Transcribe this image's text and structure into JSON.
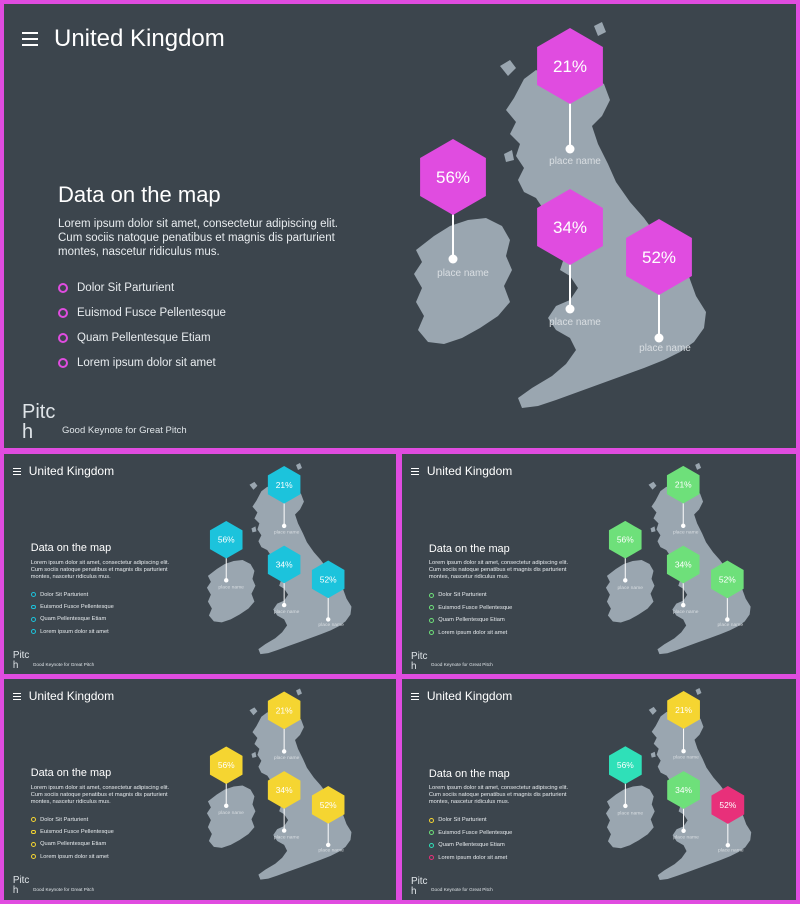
{
  "header": {
    "title": "United Kingdom"
  },
  "content": {
    "heading": "Data on the map",
    "description": [
      "Lorem ipsum dolor sit amet, consectetur adipiscing elit.",
      "Cum sociis natoque penatibus et magnis dis parturient",
      "montes, nascetur ridiculus mus."
    ],
    "bullets": [
      "Dolor Sit Parturient",
      "Euismod Fusce Pellentesque",
      "Quam Pellentesque Etiam",
      "Lorem ipsum dolor sit amet"
    ]
  },
  "footer": {
    "logo_line1": "Pitc",
    "logo_line2": "h",
    "tagline": "Good Keynote for Great Pitch"
  },
  "pins": [
    {
      "value": "21%",
      "label": "place name"
    },
    {
      "value": "56%",
      "label": "place name"
    },
    {
      "value": "34%",
      "label": "place name"
    },
    {
      "value": "52%",
      "label": "place name"
    }
  ],
  "colors": {
    "background": "#3c454d",
    "map_fill": "#9aa6b0",
    "border": "#e04ce0"
  },
  "variants": [
    {
      "name": "magenta",
      "bullet_colors": [
        "#e04ce0",
        "#e04ce0",
        "#e04ce0",
        "#e04ce0"
      ],
      "pin_colors": [
        "#e04ce0",
        "#e04ce0",
        "#e04ce0",
        "#e04ce0"
      ]
    },
    {
      "name": "cyan",
      "bullet_colors": [
        "#1cc3dc",
        "#1cc3dc",
        "#1cc3dc",
        "#1cc3dc"
      ],
      "pin_colors": [
        "#1cc3dc",
        "#1cc3dc",
        "#1cc3dc",
        "#1cc3dc"
      ]
    },
    {
      "name": "green",
      "bullet_colors": [
        "#6ee07a",
        "#6ee07a",
        "#6ee07a",
        "#6ee07a"
      ],
      "pin_colors": [
        "#6ee07a",
        "#6ee07a",
        "#6ee07a",
        "#6ee07a"
      ]
    },
    {
      "name": "yellow",
      "bullet_colors": [
        "#f5d531",
        "#f5d531",
        "#f5d531",
        "#f5d531"
      ],
      "pin_colors": [
        "#f5d531",
        "#f5d531",
        "#f5d531",
        "#f5d531"
      ]
    },
    {
      "name": "mixed",
      "bullet_colors": [
        "#f5d531",
        "#6ee07a",
        "#2fe0b8",
        "#e8307a"
      ],
      "pin_colors": [
        "#f5d531",
        "#2fe0b8",
        "#6ee07a",
        "#e8307a"
      ]
    }
  ]
}
